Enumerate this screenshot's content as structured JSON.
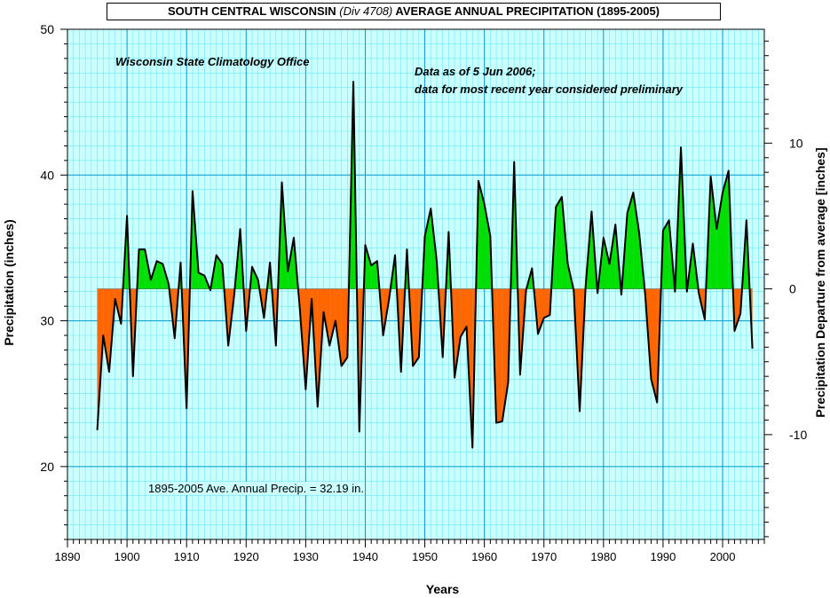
{
  "title": {
    "prefix": "SOUTH CENTRAL WISCONSIN ",
    "division": "(Div 4708)",
    "suffix": " AVERAGE ANNUAL PRECIPITATION (1895-2005)"
  },
  "annotations": {
    "source": "Wisconsin State Climatology Office",
    "data_as_of": "Data as of 5 Jun 2006;",
    "preliminary": "data for most recent year considered preliminary",
    "average": "1895-2005 Ave. Annual Precip. = 32.19 in."
  },
  "colors": {
    "above_average": "#00e000",
    "below_average": "#ff6600",
    "grid_minor": "#66e8ff",
    "grid_major": "#0099cc",
    "plot_bg": "#ccffff"
  },
  "chart_data": {
    "type": "area",
    "xlabel": "Years",
    "ylabel": "Precipitation  (inches)",
    "y2label": "Precipitation Departure from average [inches]",
    "xlim": [
      1890,
      2007
    ],
    "ylim": [
      15,
      50
    ],
    "y2lim": [
      -17.19,
      17.81
    ],
    "xticks": [
      1890,
      1900,
      1910,
      1920,
      1930,
      1940,
      1950,
      1960,
      1970,
      1980,
      1990,
      2000
    ],
    "yticks": [
      20,
      30,
      40,
      50
    ],
    "y2ticks": [
      -10,
      0,
      10
    ],
    "average": 32.19,
    "grid": true,
    "series": [
      {
        "x": [
          1895,
          1896,
          1897,
          1898,
          1899,
          1900,
          1901,
          1902,
          1903,
          1904,
          1905,
          1906,
          1907,
          1908,
          1909,
          1910,
          1911,
          1912,
          1913,
          1914,
          1915,
          1916,
          1917,
          1918,
          1919,
          1920,
          1921,
          1922,
          1923,
          1924,
          1925,
          1926,
          1927,
          1928,
          1929,
          1930,
          1931,
          1932,
          1933,
          1934,
          1935,
          1936,
          1937,
          1938,
          1939,
          1940,
          1941,
          1942,
          1943,
          1944,
          1945,
          1946,
          1947,
          1948,
          1949,
          1950,
          1951,
          1952,
          1953,
          1954,
          1955,
          1956,
          1957,
          1958,
          1959,
          1960,
          1961,
          1962,
          1963,
          1964,
          1965,
          1966,
          1967,
          1968,
          1969,
          1970,
          1971,
          1972,
          1973,
          1974,
          1975,
          1976,
          1977,
          1978,
          1979,
          1980,
          1981,
          1982,
          1983,
          1984,
          1985,
          1986,
          1987,
          1988,
          1989,
          1990,
          1991,
          1992,
          1993,
          1994,
          1995,
          1996,
          1997,
          1998,
          1999,
          2000,
          2001,
          2002,
          2003,
          2004,
          2005
        ],
        "values": [
          22.5,
          29.0,
          26.5,
          31.5,
          29.8,
          37.2,
          26.2,
          34.9,
          34.9,
          32.8,
          34.1,
          33.9,
          32.5,
          28.8,
          34.0,
          24.0,
          38.9,
          33.3,
          33.1,
          32.1,
          34.5,
          33.9,
          28.3,
          31.8,
          36.3,
          29.3,
          33.7,
          32.8,
          30.2,
          34.0,
          28.3,
          39.5,
          33.4,
          35.7,
          30.9,
          25.3,
          31.5,
          24.1,
          30.6,
          28.3,
          30.0,
          26.9,
          27.5,
          46.4,
          22.4,
          35.2,
          33.8,
          34.1,
          29.0,
          31.5,
          34.5,
          26.5,
          34.9,
          26.9,
          27.5,
          35.8,
          37.7,
          34.1,
          27.5,
          36.1,
          26.1,
          28.9,
          29.6,
          21.3,
          39.6,
          38.0,
          35.8,
          23.0,
          23.1,
          25.8,
          40.9,
          26.3,
          32.1,
          33.6,
          29.1,
          30.2,
          30.4,
          37.8,
          38.5,
          33.9,
          32.1,
          23.8,
          32.4,
          37.5,
          31.9,
          35.7,
          33.9,
          36.6,
          31.8,
          37.4,
          38.8,
          36.0,
          31.8,
          26.0,
          24.4,
          36.2,
          36.9,
          32.0,
          41.9,
          32.0,
          35.3,
          31.9,
          30.1,
          39.9,
          36.3,
          38.8,
          40.3,
          29.3,
          30.5,
          36.9,
          28.1
        ]
      }
    ]
  }
}
